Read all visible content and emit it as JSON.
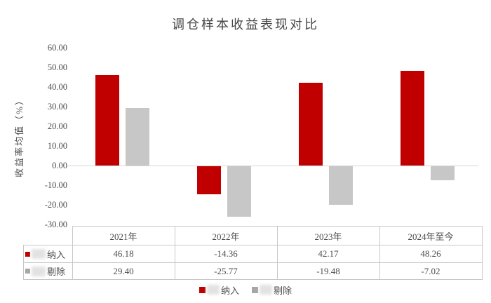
{
  "title": "调仓样本收益表现对比",
  "chart_data": {
    "type": "bar",
    "title": "调仓样本收益表现对比",
    "categories": [
      "2021年",
      "2022年",
      "2023年",
      "2024年至今"
    ],
    "series": [
      {
        "name": "纳入",
        "color": "#c00000",
        "key_color": "#c00000",
        "values": [
          46.18,
          -14.36,
          42.17,
          48.26
        ],
        "label_redacted_prefix": true
      },
      {
        "name": "剔除",
        "color": "#c7c7c7",
        "key_color": "#a6a6a6",
        "values": [
          29.4,
          -25.77,
          -19.48,
          -7.02
        ],
        "label_redacted_prefix": true
      }
    ],
    "xlabel": "",
    "ylabel": "收益率均值（%）",
    "ylim": [
      -30,
      60
    ],
    "yticks": {
      "values": [
        60,
        50,
        40,
        30,
        20,
        10,
        0,
        -10,
        -20,
        -30
      ],
      "labels": [
        "60.00",
        "50.00",
        "40.00",
        "30.00",
        "20.00",
        "10.00",
        "0.00",
        "-10.00",
        "-20.00",
        "-30.00"
      ]
    },
    "grid": false,
    "legend_position": "bottom",
    "data_table_shown": true
  },
  "table": {
    "corner_label": "",
    "col_headers": [
      "2021年",
      "2022年",
      "2023年",
      "2024年至今"
    ],
    "rows": [
      {
        "label": "纳入",
        "key_color": "#c00000",
        "cells": [
          "46.18",
          "-14.36",
          "42.17",
          "48.26"
        ]
      },
      {
        "label": "剔除",
        "key_color": "#a6a6a6",
        "cells": [
          "29.40",
          "-25.77",
          "-19.48",
          "-7.02"
        ]
      }
    ]
  },
  "legend": {
    "items": [
      {
        "label": "纳入",
        "color": "#c00000"
      },
      {
        "label": "剔除",
        "color": "#a6a6a6"
      }
    ]
  }
}
